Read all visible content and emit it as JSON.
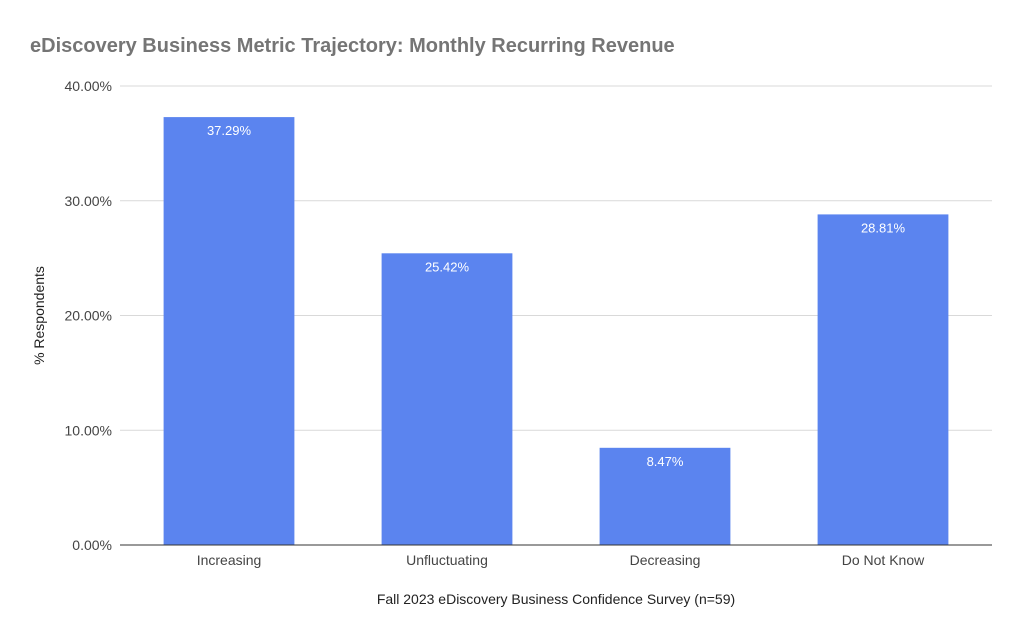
{
  "chart_data": {
    "type": "bar",
    "title": "eDiscovery Business Metric Trajectory: Monthly Recurring Revenue",
    "xlabel": "Fall 2023 eDiscovery Business Confidence Survey (n=59)",
    "ylabel": "% Respondents",
    "categories": [
      "Increasing",
      "Unfluctuating",
      "Decreasing",
      "Do Not Know"
    ],
    "values": [
      37.29,
      25.42,
      8.47,
      28.81
    ],
    "value_labels": [
      "37.29%",
      "25.42%",
      "8.47%",
      "28.81%"
    ],
    "ylim": [
      0,
      40
    ],
    "y_ticks": [
      0,
      10,
      20,
      30,
      40
    ],
    "y_tick_labels": [
      "0.00%",
      "10.00%",
      "20.00%",
      "30.00%",
      "40.00%"
    ],
    "bar_color": "#5b84ef",
    "grid": true,
    "legend": "none"
  }
}
